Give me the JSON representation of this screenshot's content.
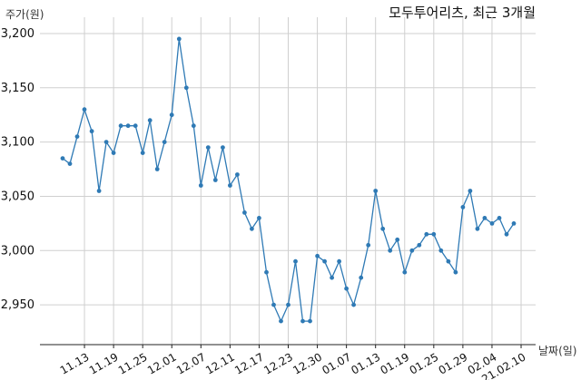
{
  "chart_data": {
    "type": "line",
    "title": "모두투어리츠, 최근 3개월",
    "ylabel": "주가(원)",
    "xlabel": "날짜(일)",
    "ylim": [
      2920,
      3210
    ],
    "y_ticks": [
      2950,
      3000,
      3050,
      3100,
      3150,
      3200
    ],
    "y_tick_labels": [
      "2,950",
      "3,000",
      "3,050",
      "3,100",
      "3,150",
      "3,200"
    ],
    "x_tick_labels": [
      "11.13",
      "11.19",
      "11.25",
      "12.01",
      "12.07",
      "12.11",
      "12.17",
      "12.23",
      "12.30",
      "01.07",
      "01.13",
      "01.19",
      "01.25",
      "01.29",
      "02.04",
      "21.02.10"
    ],
    "x_tick_index": [
      3,
      7,
      11,
      15,
      19,
      23,
      27,
      31,
      35,
      39,
      43,
      47,
      51,
      55,
      59,
      63
    ],
    "grid": true,
    "color": "#2f7ab5",
    "series": [
      {
        "values": [
          3085,
          3080,
          3105,
          3130,
          3110,
          3055,
          3100,
          3090,
          3115,
          3115,
          3115,
          3090,
          3120,
          3075,
          3100,
          3125,
          3195,
          3150,
          3115,
          3060,
          3095,
          3065,
          3095,
          3060,
          3070,
          3035,
          3020,
          3030,
          2980,
          2950,
          2935,
          2950,
          2990,
          2935,
          2935,
          2995,
          2990,
          2975,
          2990,
          2965,
          2950,
          2975,
          3005,
          3055,
          3020,
          3000,
          3010,
          2980,
          3000,
          3005,
          3015,
          3015,
          3000,
          2990,
          2980,
          3040,
          3055,
          3020,
          3030,
          3025,
          3030,
          3015,
          3025
        ]
      }
    ]
  }
}
